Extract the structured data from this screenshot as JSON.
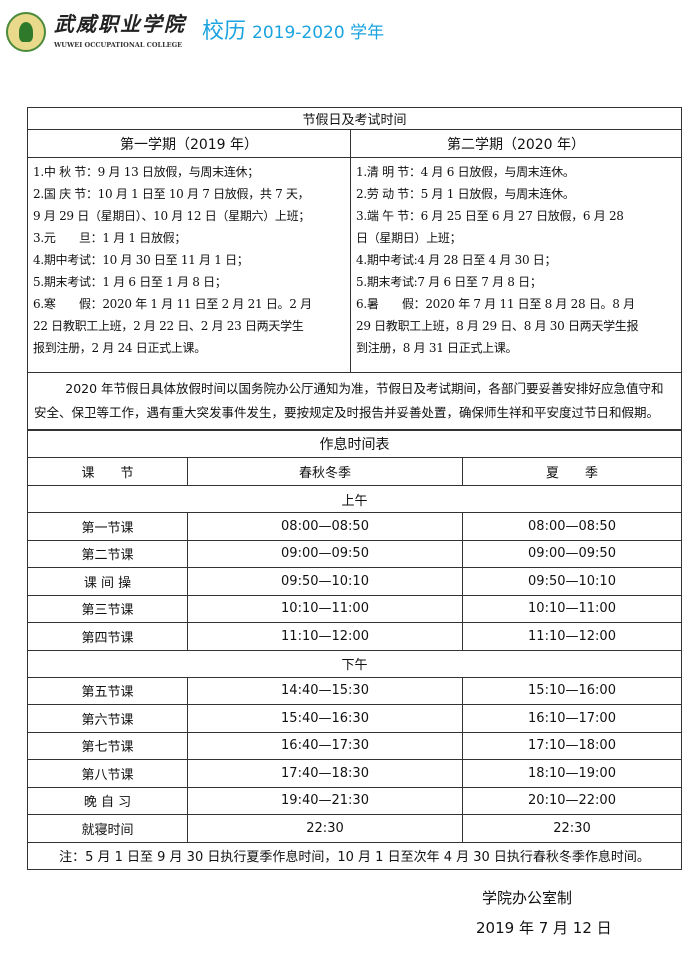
{
  "header": {
    "college_cn": "武威职业学院",
    "college_en": "WUWEI OCCUPATIONAL COLLEGE",
    "title": "校历",
    "year": "2019-2020 学年"
  },
  "holidays": {
    "title": "节假日及考试时间",
    "sem1": {
      "heading": "第一学期（2019 年）",
      "lines": [
        "1.中 秋 节：9 月 13 日放假，与周末连休；",
        "2.国 庆 节：10 月 1 日至 10 月 7 日放假，共 7 天，",
        "9 月 29 日（星期日）、10 月 12 日（星期六）上班；",
        "3.元　　旦：1 月 1 日放假；",
        "4.期中考试：10 月 30 日至 11 月 1 日；",
        "5.期末考试：1 月 6 日至 1 月 8 日；",
        "6.寒　　假：2020 年 1 月 11 日至 2 月 21 日。2 月",
        "22 日教职工上班，2 月 22 日、2 月 23 日两天学生",
        "报到注册，2 月 24 日正式上课。"
      ]
    },
    "sem2": {
      "heading": "第二学期（2020 年）",
      "lines": [
        "1.清 明 节：4 月 6 日放假，与周末连休。",
        "2.劳 动 节：5 月 1 日放假，与周末连休。",
        "3.端 午 节：6 月 25 日至 6 月 27 日放假，6 月 28",
        "日（星期日）上班；",
        "4.期中考试:4 月 28 日至 4 月 30 日；",
        "5.期末考试:7 月 6 日至 7 月 8 日；",
        "6.暑　　假：2020 年 7 月 11 日至 8 月 28 日。8 月",
        "29 日教职工上班，8 月 29 日、8 月 30 日两天学生报",
        "到注册，8 月 31 日正式上课。"
      ]
    },
    "note": "2020 年节假日具体放假时间以国务院办公厅通知为准，节假日及考试期间，各部门要妥善安排好应急值守和安全、保卫等工作，遇有重大突发事件发生，要按规定及时报告并妥善处置，确保师生祥和平安度过节日和假期。"
  },
  "schedule": {
    "title": "作息时间表",
    "columns": [
      "课　　节",
      "春秋冬季",
      "夏　　季"
    ],
    "morning_label": "上午",
    "morning": [
      [
        "第一节课",
        "08:00—08:50",
        "08:00—08:50"
      ],
      [
        "第二节课",
        "09:00—09:50",
        "09:00—09:50"
      ],
      [
        "课 间 操",
        "09:50—10:10",
        "09:50—10:10"
      ],
      [
        "第三节课",
        "10:10—11:00",
        "10:10—11:00"
      ],
      [
        "第四节课",
        "11:10—12:00",
        "11:10—12:00"
      ]
    ],
    "afternoon_label": "下午",
    "afternoon": [
      [
        "第五节课",
        "14:40—15:30",
        "15:10—16:00"
      ],
      [
        "第六节课",
        "15:40—16:30",
        "16:10—17:00"
      ],
      [
        "第七节课",
        "16:40—17:30",
        "17:10—18:00"
      ],
      [
        "第八节课",
        "17:40—18:30",
        "18:10—19:00"
      ],
      [
        "晚 自 习",
        "19:40—21:30",
        "20:10—22:00"
      ],
      [
        "就寝时间",
        "22:30",
        "22:30"
      ]
    ],
    "note": "注：5 月 1 日至 9 月 30 日执行夏季作息时间，10 月 1 日至次年 4 月 30 日执行春秋冬季作息时间。"
  },
  "footer": {
    "issuer": "学院办公室制",
    "date": "2019 年 7 月 12 日"
  }
}
